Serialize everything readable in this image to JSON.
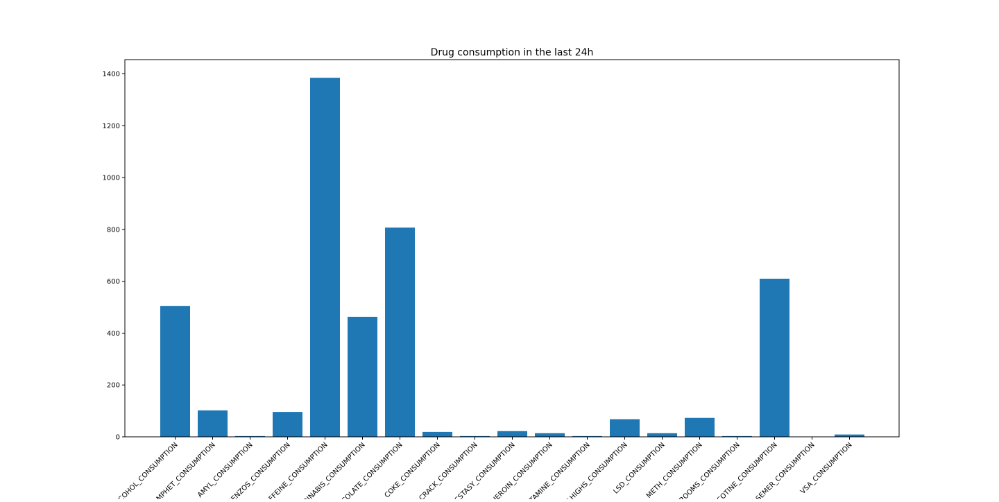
{
  "chart_data": {
    "type": "bar",
    "title": "Drug consumption in the last 24h",
    "xlabel": "",
    "ylabel": "",
    "categories": [
      "ALCOHOL_CONSUMPTION",
      "AMPHET_CONSUMPTION",
      "AMYL_CONSUMPTION",
      "BENZOS_CONSUMPTION",
      "CAFFEINE_CONSUMPTION",
      "CANNABIS_CONSUMPTION",
      "CHOCOLATE_CONSUMPTION",
      "COKE_CONSUMPTION",
      "CRACK_CONSUMPTION",
      "ECSTASY_CONSUMPTION",
      "HEROIN_CONSUMPTION",
      "KETAMINE_CONSUMPTION",
      "LEGALHIGHS_CONSUMPTION",
      "LSD_CONSUMPTION",
      "METH_CONSUMPTION",
      "MUSHROOMS_CONSUMPTION",
      "NICOTINE_CONSUMPTION",
      "SEMER_CONSUMPTION",
      "VSA_CONSUMPTION"
    ],
    "values": [
      505,
      102,
      3,
      96,
      1385,
      463,
      807,
      19,
      3,
      22,
      14,
      3,
      68,
      14,
      73,
      3,
      610,
      0,
      9
    ],
    "ylim": [
      0,
      1455
    ],
    "yticks": [
      0,
      200,
      400,
      600,
      800,
      1000,
      1200,
      1400
    ],
    "grid": false,
    "legend": "none",
    "bar_color": "#1f77b4"
  }
}
